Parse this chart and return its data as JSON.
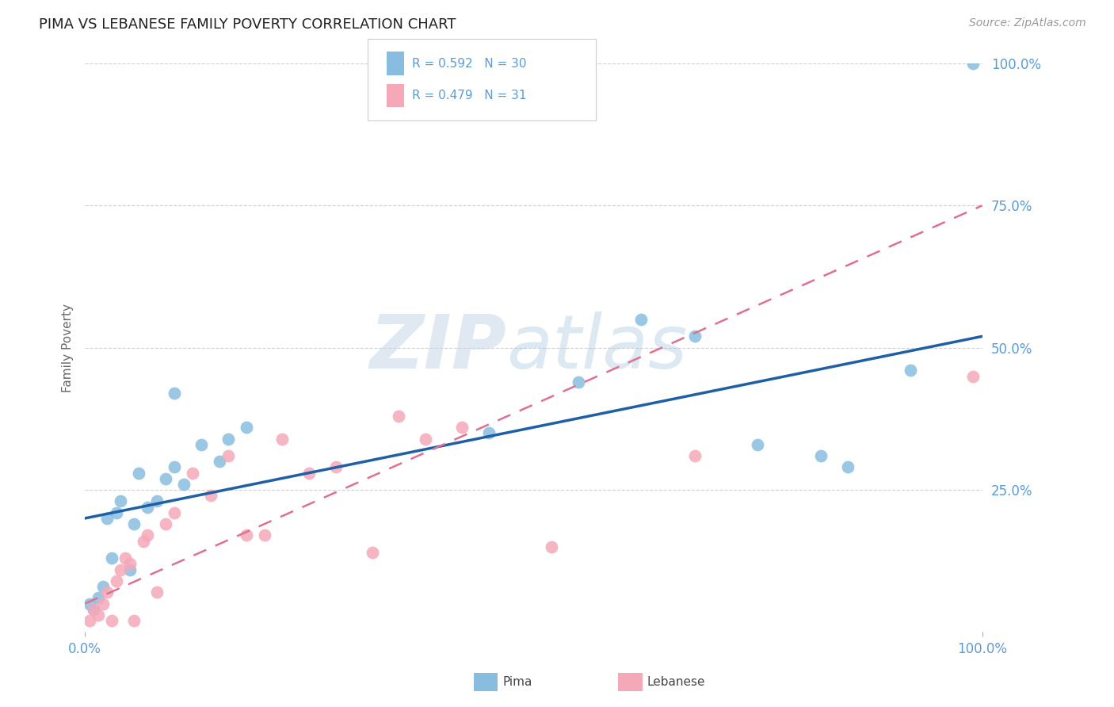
{
  "title": "PIMA VS LEBANESE FAMILY POVERTY CORRELATION CHART",
  "source": "Source: ZipAtlas.com",
  "ylabel": "Family Poverty",
  "legend_label1": "Pima",
  "legend_label2": "Lebanese",
  "r1": 0.592,
  "n1": 30,
  "r2": 0.479,
  "n2": 31,
  "pima_x": [
    0.5,
    1.0,
    1.5,
    2.0,
    2.5,
    3.0,
    3.5,
    4.0,
    5.0,
    5.5,
    6.0,
    7.0,
    8.0,
    9.0,
    10.0,
    11.0,
    13.0,
    15.0,
    16.0,
    18.0,
    10.0,
    45.0,
    55.0,
    62.0,
    68.0,
    75.0,
    82.0,
    85.0,
    92.0,
    99.0
  ],
  "pima_y": [
    5.0,
    4.0,
    6.0,
    8.0,
    20.0,
    13.0,
    21.0,
    23.0,
    11.0,
    19.0,
    28.0,
    22.0,
    23.0,
    27.0,
    29.0,
    26.0,
    33.0,
    30.0,
    34.0,
    36.0,
    42.0,
    35.0,
    44.0,
    55.0,
    52.0,
    33.0,
    31.0,
    29.0,
    46.0,
    100.0
  ],
  "lebanese_x": [
    0.5,
    1.0,
    1.5,
    2.0,
    2.5,
    3.0,
    3.5,
    4.0,
    4.5,
    5.0,
    5.5,
    6.5,
    7.0,
    8.0,
    9.0,
    10.0,
    12.0,
    14.0,
    16.0,
    18.0,
    20.0,
    22.0,
    25.0,
    28.0,
    32.0,
    38.0,
    42.0,
    52.0,
    35.0,
    68.0,
    99.0
  ],
  "lebanese_y": [
    2.0,
    4.0,
    3.0,
    5.0,
    7.0,
    2.0,
    9.0,
    11.0,
    13.0,
    12.0,
    2.0,
    16.0,
    17.0,
    7.0,
    19.0,
    21.0,
    28.0,
    24.0,
    31.0,
    17.0,
    17.0,
    34.0,
    28.0,
    29.0,
    14.0,
    34.0,
    36.0,
    15.0,
    38.0,
    31.0,
    45.0
  ],
  "pima_line_x0": 0,
  "pima_line_y0": 20.0,
  "pima_line_x1": 100,
  "pima_line_y1": 52.0,
  "leb_line_x0": 0,
  "leb_line_y0": 5.0,
  "leb_line_x1": 100,
  "leb_line_y1": 75.0,
  "pima_color": "#89bde0",
  "lebanese_color": "#f5a8b8",
  "pima_line_color": "#1f5fa6",
  "lebanese_line_color": "#e07090",
  "bg_color": "#ffffff",
  "grid_color": "#cccccc",
  "watermark_zip": "ZIP",
  "watermark_atlas": "atlas",
  "ylim": [
    0,
    100
  ],
  "xlim": [
    0,
    100
  ],
  "ytick_labels": [
    "25.0%",
    "50.0%",
    "75.0%",
    "100.0%"
  ],
  "ytick_values": [
    25,
    50,
    75,
    100
  ],
  "xtick_labels": [
    "0.0%",
    "100.0%"
  ],
  "xtick_values": [
    0,
    100
  ]
}
